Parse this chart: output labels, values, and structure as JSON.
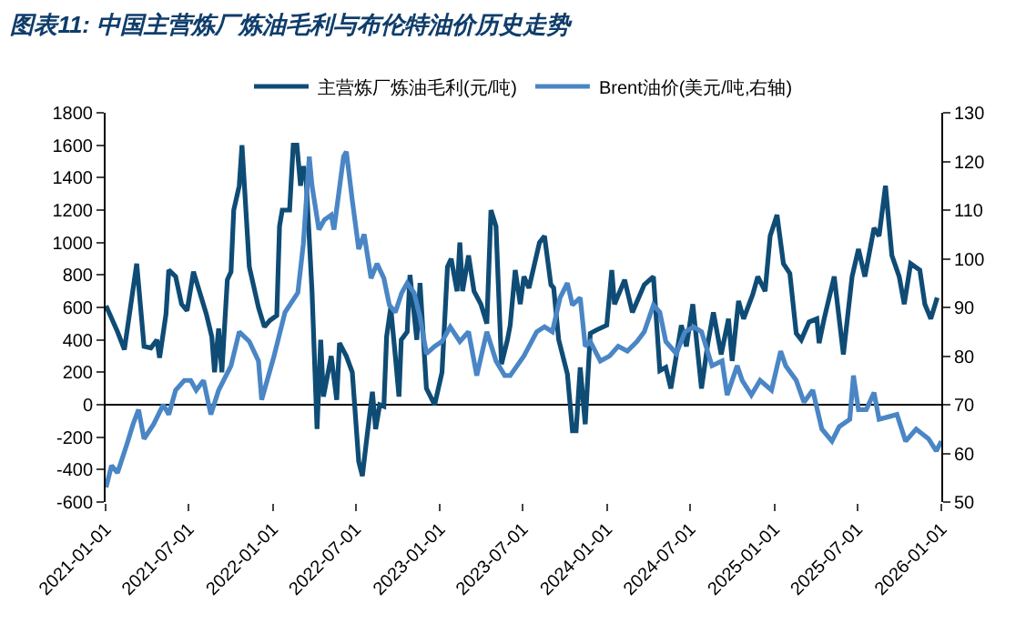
{
  "chart_data": {
    "type": "line",
    "title": "图表11: 中国主营炼厂炼油毛利与布伦特油价历史走势",
    "series": [
      {
        "name": "主营炼厂炼油毛利(元/吨)",
        "color": "#0f4c75",
        "axis": "y",
        "x": [
          "2021-01-02",
          "2021-01-27",
          "2021-02-11",
          "2021-03-10",
          "2021-03-26",
          "2021-04-10",
          "2021-04-23",
          "2021-04-29",
          "2021-05-13",
          "2021-05-19",
          "2021-06-03",
          "2021-06-16",
          "2021-06-28",
          "2021-07-12",
          "2021-07-25",
          "2021-08-09",
          "2021-08-21",
          "2021-08-27",
          "2021-09-05",
          "2021-09-12",
          "2021-09-24",
          "2021-10-02",
          "2021-10-08",
          "2021-10-20",
          "2021-10-26",
          "2021-11-11",
          "2021-12-01",
          "2021-12-14",
          "2021-12-26",
          "2022-01-10",
          "2022-01-16",
          "2022-01-22",
          "2022-02-07",
          "2022-02-15",
          "2022-02-23",
          "2022-03-03",
          "2022-03-09",
          "2022-03-15",
          "2022-03-28",
          "2022-04-08",
          "2022-04-16",
          "2022-04-22",
          "2022-05-09",
          "2022-05-21",
          "2022-05-27",
          "2022-06-11",
          "2022-06-24",
          "2022-07-08",
          "2022-07-16",
          "2022-07-26",
          "2022-08-07",
          "2022-08-14",
          "2022-08-23",
          "2022-09-01",
          "2022-09-07",
          "2022-09-16",
          "2022-09-26",
          "2022-10-04",
          "2022-10-09",
          "2022-10-22",
          "2022-10-28",
          "2022-11-12",
          "2022-11-19",
          "2022-12-03",
          "2022-12-21",
          "2023-01-06",
          "2023-01-18",
          "2023-01-26",
          "2023-02-08",
          "2023-02-14",
          "2023-02-20",
          "2023-03-05",
          "2023-03-17",
          "2023-04-01",
          "2023-04-14",
          "2023-04-23",
          "2023-05-04",
          "2023-05-16",
          "2023-05-29",
          "2023-06-04",
          "2023-06-15",
          "2023-06-26",
          "2023-07-04",
          "2023-07-15",
          "2023-08-07",
          "2023-08-18",
          "2023-09-01",
          "2023-09-07",
          "2023-09-18",
          "2023-10-07",
          "2023-10-18",
          "2023-10-26",
          "2023-11-04",
          "2023-11-15",
          "2023-11-26",
          "2023-12-09",
          "2024-01-01",
          "2024-01-12",
          "2024-01-18",
          "2024-02-09",
          "2024-02-26",
          "2024-03-23",
          "2024-04-12",
          "2024-04-26",
          "2024-05-09",
          "2024-05-20",
          "2024-06-12",
          "2024-06-23",
          "2024-07-07",
          "2024-07-26",
          "2024-08-09",
          "2024-08-21",
          "2024-09-07",
          "2024-09-23",
          "2024-10-01",
          "2024-10-15",
          "2024-10-26",
          "2024-11-15",
          "2024-11-26",
          "2024-12-12",
          "2024-12-23",
          "2025-01-07",
          "2025-01-21",
          "2025-02-04",
          "2025-02-18",
          "2025-03-01",
          "2025-03-18",
          "2025-04-04",
          "2025-04-09",
          "2025-04-20",
          "2025-05-12",
          "2025-06-01",
          "2025-06-20",
          "2025-07-04",
          "2025-07-18",
          "2025-08-07",
          "2025-08-18",
          "2025-09-01",
          "2025-09-15",
          "2025-10-01",
          "2025-10-12",
          "2025-10-26",
          "2025-11-15",
          "2025-11-26",
          "2025-12-09",
          "2025-12-23"
        ],
        "values": [
          610,
          450,
          340,
          870,
          360,
          350,
          400,
          290,
          560,
          830,
          790,
          620,
          580,
          820,
          700,
          560,
          420,
          200,
          470,
          200,
          770,
          820,
          1200,
          1350,
          1600,
          850,
          600,
          480,
          520,
          550,
          1100,
          1200,
          1200,
          1600,
          1600,
          1350,
          1470,
          1400,
          700,
          -150,
          400,
          50,
          300,
          30,
          380,
          300,
          200,
          -350,
          -440,
          -200,
          80,
          -150,
          0,
          -10,
          420,
          600,
          300,
          50,
          400,
          450,
          800,
          400,
          750,
          100,
          0,
          200,
          850,
          900,
          700,
          1000,
          700,
          920,
          700,
          620,
          500,
          1200,
          1100,
          250,
          400,
          490,
          830,
          620,
          790,
          720,
          1000,
          1040,
          740,
          720,
          400,
          190,
          -160,
          -160,
          230,
          -120,
          440,
          460,
          490,
          830,
          620,
          770,
          570,
          740,
          790,
          210,
          230,
          100,
          490,
          360,
          620,
          100,
          380,
          570,
          310,
          530,
          270,
          640,
          530,
          680,
          790,
          700,
          1040,
          1170,
          870,
          810,
          440,
          400,
          510,
          530,
          380,
          530,
          790,
          310,
          790,
          960,
          790,
          1090,
          1040,
          1350,
          920,
          790,
          620,
          870,
          830,
          620,
          530,
          660
        ]
      },
      {
        "name": "Brent油价(美元/吨,右轴)",
        "color": "#4a86c5",
        "axis": "y2",
        "x": [
          "2021-01-02",
          "2021-01-14",
          "2021-01-27",
          "2021-02-17",
          "2021-03-02",
          "2021-03-14",
          "2021-03-26",
          "2021-04-16",
          "2021-05-07",
          "2021-05-19",
          "2021-06-03",
          "2021-06-22",
          "2021-07-06",
          "2021-07-18",
          "2021-08-03",
          "2021-08-19",
          "2021-09-05",
          "2021-10-02",
          "2021-10-20",
          "2021-11-11",
          "2021-12-01",
          "2021-12-08",
          "2021-12-20",
          "2022-01-04",
          "2022-01-28",
          "2022-02-25",
          "2022-03-09",
          "2022-03-22",
          "2022-03-28",
          "2022-04-12",
          "2022-04-24",
          "2022-05-09",
          "2022-05-15",
          "2022-06-05",
          "2022-06-11",
          "2022-06-24",
          "2022-07-08",
          "2022-07-20",
          "2022-08-04",
          "2022-08-17",
          "2022-09-01",
          "2022-09-13",
          "2022-09-26",
          "2022-10-10",
          "2022-10-22",
          "2022-11-06",
          "2022-11-19",
          "2022-12-03",
          "2022-12-21",
          "2023-01-06",
          "2023-01-24",
          "2023-02-14",
          "2023-03-05",
          "2023-03-23",
          "2023-04-14",
          "2023-05-04",
          "2023-05-23",
          "2023-06-04",
          "2023-07-04",
          "2023-08-01",
          "2023-08-18",
          "2023-09-04",
          "2023-09-21",
          "2023-10-07",
          "2023-10-18",
          "2023-11-04",
          "2023-11-15",
          "2023-11-26",
          "2023-12-18",
          "2024-01-07",
          "2024-01-26",
          "2024-02-15",
          "2024-03-07",
          "2024-03-23",
          "2024-04-12",
          "2024-04-26",
          "2024-05-09",
          "2024-06-01",
          "2024-06-20",
          "2024-07-09",
          "2024-07-26",
          "2024-08-18",
          "2024-09-09",
          "2024-09-20",
          "2024-10-12",
          "2024-10-23",
          "2024-11-12",
          "2024-12-01",
          "2024-12-26",
          "2025-01-15",
          "2025-01-26",
          "2025-02-18",
          "2025-03-07",
          "2025-03-26",
          "2025-04-15",
          "2025-05-07",
          "2025-05-23",
          "2025-06-15",
          "2025-06-23",
          "2025-07-04",
          "2025-07-21",
          "2025-08-07",
          "2025-08-18",
          "2025-09-07",
          "2025-09-26",
          "2025-10-15",
          "2025-11-07",
          "2025-12-04",
          "2025-12-21",
          "2026-01-01"
        ],
        "values": [
          53,
          57.5,
          56,
          62,
          66,
          69,
          63,
          66,
          70,
          68,
          73,
          75,
          75,
          73,
          75,
          68,
          73,
          78,
          85,
          83,
          79,
          71,
          75,
          80,
          89,
          93,
          103,
          121,
          115,
          106,
          108,
          109,
          106,
          121,
          122,
          112,
          102,
          105,
          96,
          99,
          96,
          90.5,
          89,
          93,
          95,
          93,
          88,
          80.5,
          82,
          83,
          86,
          83,
          85,
          76,
          85,
          79,
          76,
          76,
          80,
          85,
          86,
          85,
          92,
          95,
          90.5,
          92,
          82,
          83,
          79,
          80,
          82,
          81,
          83,
          85,
          90.5,
          89,
          83,
          80.5,
          85,
          86,
          85,
          78,
          79,
          72,
          78,
          75,
          72,
          75,
          73,
          81,
          78,
          75,
          70.5,
          73,
          65,
          62.5,
          65.5,
          67,
          76,
          69,
          69,
          72.5,
          67,
          67.5,
          68,
          62.5,
          65,
          63,
          60.5,
          62.5
        ]
      }
    ],
    "xlim": [
      "2021-01-01",
      "2026-01-01"
    ],
    "xticks": [
      "2021-01-01",
      "2021-07-01",
      "2022-01-01",
      "2022-07-01",
      "2023-01-01",
      "2023-07-01",
      "2024-01-01",
      "2024-07-01",
      "2025-01-01",
      "2025-07-01",
      "2026-01-01"
    ],
    "ylim": [
      -600,
      1800
    ],
    "yticks": [
      -600,
      -400,
      -200,
      0,
      200,
      400,
      600,
      800,
      1000,
      1200,
      1400,
      1600,
      1800
    ],
    "y2lim": [
      50,
      130
    ],
    "y2ticks": [
      50,
      60,
      70,
      80,
      90,
      100,
      110,
      120,
      130
    ],
    "legend": "top",
    "marker": "none",
    "line_style": "solid"
  }
}
